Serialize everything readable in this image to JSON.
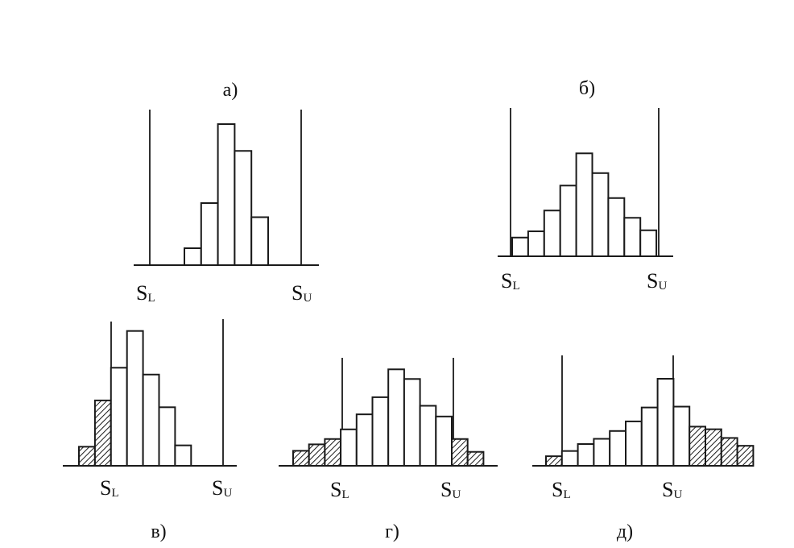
{
  "figure": {
    "colors": {
      "line": "#1a1a1a",
      "fill": "#ffffff",
      "hatch": "#1a1a1a"
    },
    "limit_labels": {
      "lower": {
        "letter": "S",
        "subscript": "L"
      },
      "upper": {
        "letter": "S",
        "subscript": "U"
      }
    },
    "panels": [
      {
        "id": "a",
        "caption": "а)",
        "bars": [
          12,
          44,
          100,
          81,
          34
        ],
        "shaded": [
          false,
          false,
          false,
          false,
          false
        ]
      },
      {
        "id": "b",
        "caption": "б)",
        "bars": [
          18,
          24,
          44,
          68,
          99,
          80,
          56,
          37,
          25
        ],
        "shaded": [
          false,
          false,
          false,
          false,
          false,
          false,
          false,
          false,
          false
        ]
      },
      {
        "id": "v",
        "caption": "в)",
        "bars": [
          14,
          48,
          72,
          99,
          67,
          43,
          15
        ],
        "shaded": [
          true,
          true,
          false,
          false,
          false,
          false,
          false
        ]
      },
      {
        "id": "g",
        "caption": "г)",
        "bars": [
          14,
          20,
          25,
          34,
          48,
          64,
          90,
          81,
          56,
          46,
          25,
          13
        ],
        "shaded": [
          true,
          true,
          true,
          false,
          false,
          false,
          false,
          false,
          false,
          false,
          true,
          true
        ]
      },
      {
        "id": "d",
        "caption": "д)",
        "bars": [
          11,
          17,
          25,
          31,
          40,
          51,
          67,
          100,
          68,
          45,
          42,
          32,
          23
        ],
        "shaded": [
          true,
          false,
          false,
          false,
          false,
          false,
          false,
          false,
          false,
          true,
          true,
          true,
          true
        ]
      }
    ]
  }
}
